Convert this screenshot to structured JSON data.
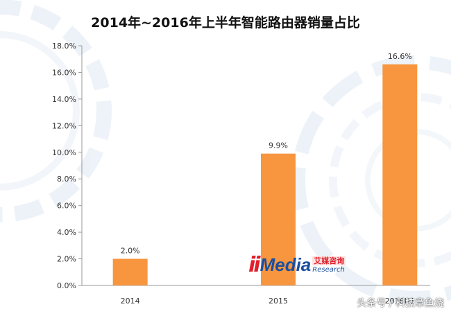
{
  "chart_data": {
    "type": "bar",
    "title": "2014年~2016年上半年智能路由器销量占比",
    "categories": [
      "2014",
      "2015",
      "2016H1"
    ],
    "values": [
      2.0,
      9.9,
      16.6
    ],
    "value_labels": [
      "2.0%",
      "9.9%",
      "16.6%"
    ],
    "y_ticks": [
      "0.0%",
      "2.0%",
      "4.0%",
      "6.0%",
      "8.0%",
      "10.0%",
      "12.0%",
      "14.0%",
      "16.0%",
      "18.0%"
    ],
    "ylim": [
      0,
      18
    ],
    "xlabel": "",
    "ylabel": "",
    "grid": false,
    "bar_color": "#f7963f"
  },
  "logo": {
    "mark": "ii",
    "word": "Media",
    "cn": "艾媒咨询",
    "sub": "Research"
  },
  "watermark": "头条号 / 科技章鱼烧"
}
